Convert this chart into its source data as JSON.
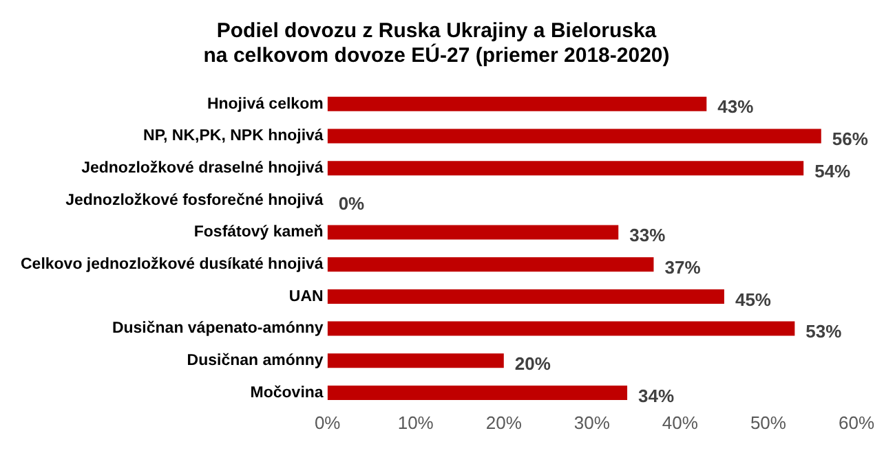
{
  "chart_data": {
    "type": "bar",
    "orientation": "horizontal",
    "title": [
      "Podiel dovozu z Ruska Ukrajiny a Bieloruska",
      "na celkovom dovoze EÚ-27 (priemer 2018-2020)"
    ],
    "categories": [
      "Hnojivá celkom",
      "NP, NK,PK, NPK hnojivá",
      "Jednozložkové draselné hnojivá",
      "Jednozložkové fosforečné hnojivá",
      "Fosfátový kameň",
      "Celkovo jednozložkové dusíkaté hnojivá",
      "UAN",
      "Dusičnan vápenato-amónny",
      "Dusičnan amónny",
      "Močovina"
    ],
    "values": [
      43,
      56,
      54,
      0,
      33,
      37,
      45,
      53,
      20,
      34
    ],
    "value_labels": [
      "43%",
      "56%",
      "54%",
      "0%",
      "33%",
      "37%",
      "45%",
      "53%",
      "20%",
      "34%"
    ],
    "color": "#c00000",
    "xlim": [
      0,
      60
    ],
    "xticks": [
      {
        "value": 0,
        "label": "0%"
      },
      {
        "value": 10,
        "label": "10%"
      },
      {
        "value": 20,
        "label": "20%"
      },
      {
        "value": 30,
        "label": "30%"
      },
      {
        "value": 40,
        "label": "40%"
      },
      {
        "value": 50,
        "label": "50%"
      },
      {
        "value": 60,
        "label": "60%"
      }
    ],
    "grid": false,
    "legend": false
  }
}
